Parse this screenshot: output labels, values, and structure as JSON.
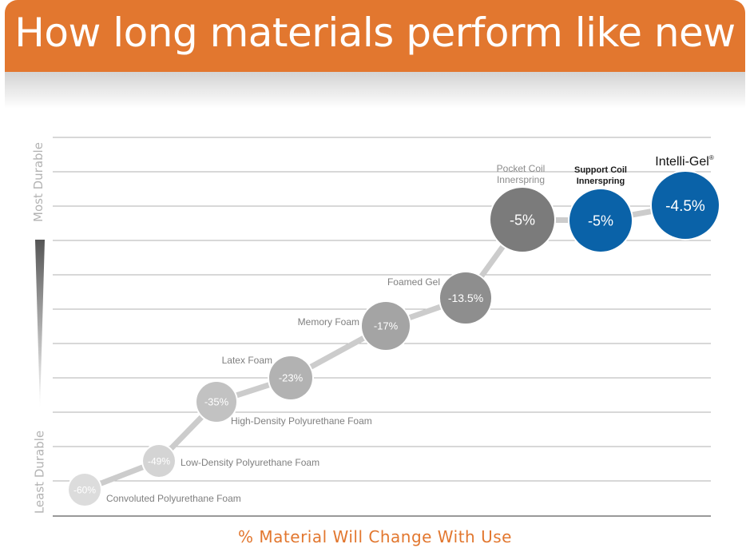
{
  "title": "How long materials perform like new",
  "chart_data": {
    "type": "line",
    "title": "How long materials perform like new",
    "xlabel": "% Material Will Change With Use",
    "ylabel_top": "Most Durable",
    "ylabel_bottom": "Least Durable",
    "series": [
      {
        "points": [
          {
            "name": "Convoluted Polyurethane Foam",
            "value": -60,
            "label": "-60%"
          },
          {
            "name": "Low-Density Polyurethane Foam",
            "value": -49,
            "label": "-49%"
          },
          {
            "name": "High-Density Polyurethane Foam",
            "value": -35,
            "label": "-35%"
          },
          {
            "name": "Latex Foam",
            "value": -23,
            "label": "-23%"
          },
          {
            "name": "Memory Foam",
            "value": -17,
            "label": "-17%"
          },
          {
            "name": "Foamed Gel",
            "value": -13.5,
            "label": "-13.5%"
          },
          {
            "name": "Pocket Coil Innerspring",
            "value": -5,
            "label": "-5%"
          },
          {
            "name": "Support Coil Innerspring",
            "value": -5,
            "label": "-5%"
          },
          {
            "name": "Intelli-Gel",
            "value": -4.5,
            "label": "-4.5%",
            "mark": "®"
          }
        ]
      }
    ],
    "grid": true,
    "colors": {
      "accent": "#e2772f",
      "highlight": "#0a62a8",
      "line": "#cccccc",
      "grid": "#b0b0b0"
    }
  }
}
